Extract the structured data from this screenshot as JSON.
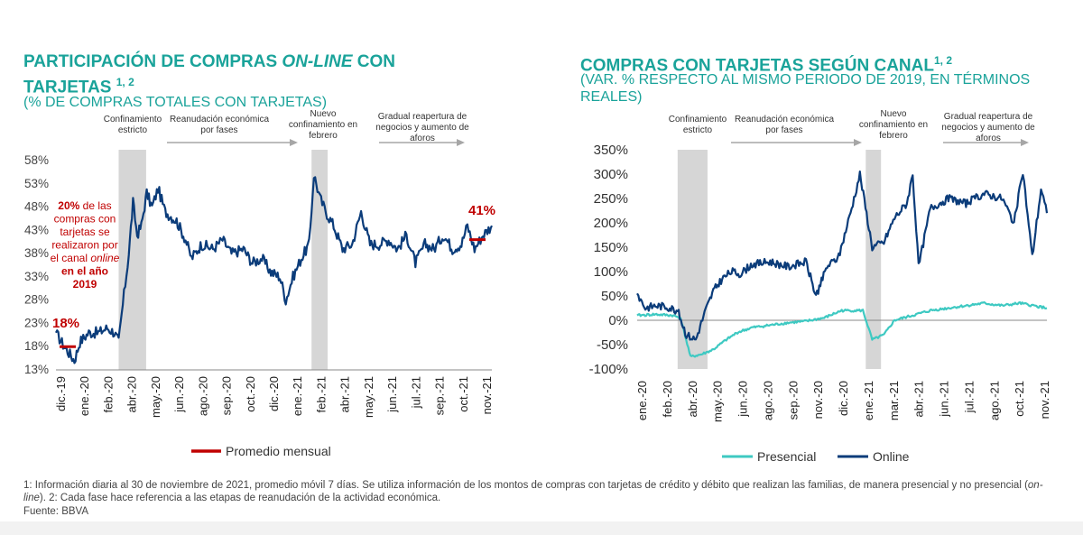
{
  "left": {
    "title_line1_a": "PARTICIPACIÓN DE COMPRAS ",
    "title_line1_b": "ON-LINE",
    "title_line1_c": " CON",
    "title_line2": "TARJETAS ",
    "title_sup": "1, 2",
    "subtitle": "(% DE COMPRAS TOTALES CON TARJETAS)",
    "phases": [
      {
        "name": "confinamiento",
        "lines": [
          "Confinamiento",
          "estricto"
        ]
      },
      {
        "name": "reanudacion",
        "lines": [
          "Reanudación económica",
          "por fases"
        ]
      },
      {
        "name": "nuevo-confinamiento",
        "lines": [
          "Nuevo",
          "confinamiento en",
          "febrero"
        ]
      },
      {
        "name": "reapertura",
        "lines": [
          "Gradual reapertura de",
          "negocios y aumento de",
          "aforos"
        ]
      }
    ],
    "annotation_18": "18%",
    "annotation_41": "41%",
    "annotation_text": [
      {
        "t": "20%",
        "style": "bold"
      },
      {
        "t": " de las",
        "style": "normal"
      },
      {
        "t": "compras con",
        "style": "normal"
      },
      {
        "t": "tarjetas se",
        "style": "normal"
      },
      {
        "t": "realizaron por",
        "style": "normal"
      },
      {
        "t": "el canal ",
        "style": "normal"
      },
      {
        "t": "online",
        "style": "italic"
      },
      {
        "t": "en el año",
        "style": "bold"
      },
      {
        "t": "2019",
        "style": "bold"
      }
    ],
    "legend_label": "Promedio mensual"
  },
  "right": {
    "title": "COMPRAS CON TARJETAS SEGÚN CANAL",
    "title_sup": "1, 2",
    "subtitle_line1": "(VAR. % RESPECTO AL MISMO PERIODO DE 2019, EN TÉRMINOS",
    "subtitle_line2": "REALES)",
    "phases": [
      {
        "name": "confinamiento",
        "lines": [
          "Confinamiento",
          "estricto"
        ]
      },
      {
        "name": "reanudacion",
        "lines": [
          "Reanudación económica",
          "por fases"
        ]
      },
      {
        "name": "nuevo-confinamiento",
        "lines": [
          "Nuevo",
          "confinamiento en",
          "febrero"
        ]
      },
      {
        "name": "reapertura",
        "lines": [
          "Gradual reapertura de",
          "negocios y aumento de",
          "aforos"
        ]
      }
    ],
    "legend_presencial": "Presencial",
    "legend_online": "Online"
  },
  "footnote_a": "1: Información diaria al 30 de noviembre de 2021, promedio móvil 7 días. Se utiliza información de los montos de compras con tarjetas de crédito y débito que realizan las familias, de manera presencial y no presencial (",
  "footnote_italic": "on-line",
  "footnote_b": ").  2: Cada fase hace referencia a las etapas de reanudación de la actividad económica.",
  "source": "Fuente: BBVA",
  "colors": {
    "teal": "#1aa39a",
    "navy": "#0b3c7a",
    "light_teal": "#3ec9c2",
    "red": "#c00000",
    "shade": "#d6d6d6",
    "arrow": "#a6a6a6"
  },
  "chart_data": [
    {
      "type": "line",
      "x_axis": "date (daily, dic-19 to nov-21)",
      "ylim": [
        13,
        58
      ],
      "y_ticks": [
        "13%",
        "18%",
        "23%",
        "28%",
        "33%",
        "38%",
        "43%",
        "48%",
        "53%",
        "58%"
      ],
      "x_ticks": [
        "dic.-19",
        "ene.-20",
        "feb.-20",
        "abr.-20",
        "may.-20",
        "jun.-20",
        "ago.-20",
        "sep.-20",
        "oct.-20",
        "dic.-20",
        "ene.-21",
        "feb.-21",
        "abr.-21",
        "may.-21",
        "jun.-21",
        "jul.-21",
        "sep.-21",
        "oct.-21",
        "nov.-21"
      ],
      "shaded_periods": [
        [
          "mar.-20",
          "abr.-20"
        ],
        [
          "feb.-21",
          "feb.-21"
        ]
      ],
      "series": [
        {
          "name": "Online",
          "key_points": [
            [
              "2019-12-01",
              21
            ],
            [
              "2019-12-15",
              18
            ],
            [
              "2020-01-01",
              15
            ],
            [
              "2020-01-10",
              19
            ],
            [
              "2020-01-25",
              21
            ],
            [
              "2020-02-10",
              21
            ],
            [
              "2020-02-25",
              22
            ],
            [
              "2020-03-08",
              21
            ],
            [
              "2020-03-15",
              19
            ],
            [
              "2020-03-22",
              27
            ],
            [
              "2020-04-01",
              38
            ],
            [
              "2020-04-08",
              49
            ],
            [
              "2020-04-15",
              42
            ],
            [
              "2020-04-22",
              44
            ],
            [
              "2020-05-01",
              51
            ],
            [
              "2020-05-10",
              48
            ],
            [
              "2020-05-20",
              52
            ],
            [
              "2020-06-01",
              47
            ],
            [
              "2020-06-20",
              45
            ],
            [
              "2020-07-05",
              41
            ],
            [
              "2020-07-15",
              37
            ],
            [
              "2020-08-01",
              40
            ],
            [
              "2020-08-20",
              39
            ],
            [
              "2020-09-05",
              41
            ],
            [
              "2020-09-20",
              38
            ],
            [
              "2020-10-10",
              39
            ],
            [
              "2020-10-25",
              36
            ],
            [
              "2020-11-10",
              37
            ],
            [
              "2020-11-25",
              34
            ],
            [
              "2020-12-10",
              33
            ],
            [
              "2020-12-20",
              28
            ],
            [
              "2021-01-01",
              33
            ],
            [
              "2021-01-15",
              37
            ],
            [
              "2021-01-28",
              40
            ],
            [
              "2021-02-05",
              55
            ],
            [
              "2021-02-15",
              50
            ],
            [
              "2021-02-25",
              47
            ],
            [
              "2021-03-10",
              44
            ],
            [
              "2021-03-25",
              39
            ],
            [
              "2021-04-10",
              40
            ],
            [
              "2021-04-25",
              47
            ],
            [
              "2021-05-10",
              40
            ],
            [
              "2021-05-25",
              40
            ],
            [
              "2021-06-10",
              41
            ],
            [
              "2021-06-25",
              39
            ],
            [
              "2021-07-10",
              42
            ],
            [
              "2021-07-25",
              36
            ],
            [
              "2021-08-10",
              40
            ],
            [
              "2021-08-25",
              39
            ],
            [
              "2021-09-10",
              42
            ],
            [
              "2021-09-25",
              39
            ],
            [
              "2021-10-10",
              40
            ],
            [
              "2021-10-20",
              44
            ],
            [
              "2021-11-01",
              39
            ],
            [
              "2021-11-15",
              42
            ],
            [
              "2021-11-30",
              44
            ]
          ]
        }
      ],
      "reference_lines": [
        {
          "label": "18%",
          "value": 18,
          "period": "dic.-19"
        },
        {
          "label": "41%",
          "value": 41,
          "period": "nov.-21"
        }
      ],
      "legend": [
        "Promedio mensual"
      ]
    },
    {
      "type": "line",
      "x_axis": "date (daily, ene-20 to nov-21)",
      "ylim": [
        -100,
        350
      ],
      "y_ticks": [
        "-100%",
        "-50%",
        "0%",
        "50%",
        "100%",
        "150%",
        "200%",
        "250%",
        "300%",
        "350%"
      ],
      "x_ticks": [
        "ene.-20",
        "feb.-20",
        "abr.-20",
        "may.-20",
        "jun.-20",
        "ago.-20",
        "sep.-20",
        "nov.-20",
        "dic.-20",
        "ene.-21",
        "mar.-21",
        "abr.-21",
        "jun.-21",
        "jul.-21",
        "ago.-21",
        "oct.-21",
        "nov.-21"
      ],
      "shaded_periods": [
        [
          "mar.-20",
          "abr.-20"
        ],
        [
          "feb.-21",
          "feb.-21"
        ]
      ],
      "series": [
        {
          "name": "Presencial",
          "key_points": [
            [
              "2020-01-01",
              10
            ],
            [
              "2020-02-01",
              12
            ],
            [
              "2020-03-01",
              10
            ],
            [
              "2020-03-15",
              5
            ],
            [
              "2020-04-01",
              -75
            ],
            [
              "2020-04-20",
              -70
            ],
            [
              "2020-05-10",
              -60
            ],
            [
              "2020-06-01",
              -40
            ],
            [
              "2020-06-20",
              -25
            ],
            [
              "2020-07-15",
              -15
            ],
            [
              "2020-08-15",
              -10
            ],
            [
              "2020-09-15",
              -5
            ],
            [
              "2020-10-15",
              -2
            ],
            [
              "2020-11-15",
              5
            ],
            [
              "2020-12-15",
              20
            ],
            [
              "2021-01-20",
              20
            ],
            [
              "2021-02-05",
              -40
            ],
            [
              "2021-02-25",
              -30
            ],
            [
              "2021-03-15",
              0
            ],
            [
              "2021-04-15",
              10
            ],
            [
              "2021-05-15",
              20
            ],
            [
              "2021-06-15",
              25
            ],
            [
              "2021-07-15",
              30
            ],
            [
              "2021-08-15",
              35
            ],
            [
              "2021-09-15",
              30
            ],
            [
              "2021-10-15",
              35
            ],
            [
              "2021-11-30",
              25
            ]
          ]
        },
        {
          "name": "Online",
          "key_points": [
            [
              "2020-01-01",
              55
            ],
            [
              "2020-01-15",
              25
            ],
            [
              "2020-02-01",
              30
            ],
            [
              "2020-02-20",
              28
            ],
            [
              "2020-03-10",
              20
            ],
            [
              "2020-03-25",
              -30
            ],
            [
              "2020-04-10",
              -40
            ],
            [
              "2020-04-25",
              15
            ],
            [
              "2020-05-10",
              60
            ],
            [
              "2020-05-25",
              85
            ],
            [
              "2020-06-10",
              100
            ],
            [
              "2020-06-25",
              95
            ],
            [
              "2020-07-15",
              115
            ],
            [
              "2020-08-15",
              120
            ],
            [
              "2020-09-15",
              110
            ],
            [
              "2020-10-15",
              120
            ],
            [
              "2020-11-01",
              50
            ],
            [
              "2020-11-20",
              110
            ],
            [
              "2020-12-10",
              130
            ],
            [
              "2021-01-01",
              230
            ],
            [
              "2021-01-15",
              300
            ],
            [
              "2021-02-05",
              150
            ],
            [
              "2021-02-25",
              160
            ],
            [
              "2021-03-15",
              210
            ],
            [
              "2021-04-05",
              240
            ],
            [
              "2021-04-15",
              300
            ],
            [
              "2021-04-25",
              110
            ],
            [
              "2021-05-15",
              230
            ],
            [
              "2021-06-15",
              250
            ],
            [
              "2021-07-15",
              240
            ],
            [
              "2021-08-15",
              260
            ],
            [
              "2021-09-15",
              250
            ],
            [
              "2021-10-05",
              200
            ],
            [
              "2021-10-20",
              305
            ],
            [
              "2021-11-05",
              130
            ],
            [
              "2021-11-20",
              270
            ],
            [
              "2021-11-30",
              220
            ]
          ]
        }
      ],
      "legend": [
        "Presencial",
        "Online"
      ]
    }
  ]
}
